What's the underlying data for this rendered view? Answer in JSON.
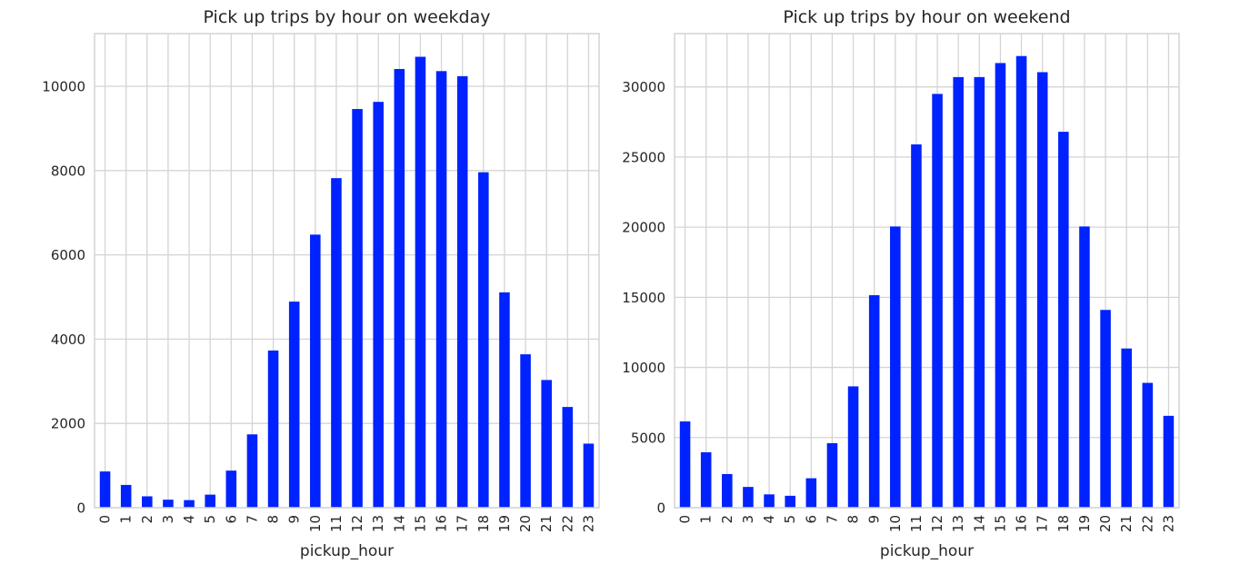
{
  "colors": {
    "bar": "#0022ff",
    "grid": "#d4d4d4",
    "frame": "#d4d4d4",
    "background": "#ffffff",
    "text": "#262626"
  },
  "chart_data": [
    {
      "type": "bar",
      "title": "Pick up trips by hour on weekday",
      "xlabel": "pickup_hour",
      "ylabel": "",
      "categories": [
        "0",
        "1",
        "2",
        "3",
        "4",
        "5",
        "6",
        "7",
        "8",
        "9",
        "10",
        "11",
        "12",
        "13",
        "14",
        "15",
        "16",
        "17",
        "18",
        "19",
        "20",
        "21",
        "22",
        "23"
      ],
      "values": [
        860,
        540,
        270,
        190,
        180,
        310,
        880,
        1740,
        3730,
        4890,
        6480,
        7820,
        9460,
        9630,
        10410,
        10700,
        10360,
        10240,
        7960,
        5110,
        3640,
        3030,
        2390,
        1520
      ],
      "ylim": [
        0,
        11250
      ],
      "yticks": [
        0,
        2000,
        4000,
        6000,
        8000,
        10000
      ],
      "ytick_labels": [
        "0",
        "2000",
        "4000",
        "6000",
        "8000",
        "10000"
      ],
      "grid": true,
      "legend": "none"
    },
    {
      "type": "bar",
      "title": "Pick up trips by hour on weekend",
      "xlabel": "pickup_hour",
      "ylabel": "",
      "categories": [
        "0",
        "1",
        "2",
        "3",
        "4",
        "5",
        "6",
        "7",
        "8",
        "9",
        "10",
        "11",
        "12",
        "13",
        "14",
        "15",
        "16",
        "17",
        "18",
        "19",
        "20",
        "21",
        "22",
        "23"
      ],
      "values": [
        6150,
        3950,
        2400,
        1480,
        950,
        850,
        2100,
        4600,
        8650,
        15150,
        20050,
        25900,
        29500,
        30700,
        30700,
        31700,
        32200,
        31050,
        26800,
        20050,
        14100,
        11350,
        8900,
        6550
      ],
      "ylim": [
        0,
        33800
      ],
      "yticks": [
        0,
        5000,
        10000,
        15000,
        20000,
        25000,
        30000
      ],
      "ytick_labels": [
        "0",
        "5000",
        "10000",
        "15000",
        "20000",
        "25000",
        "30000"
      ],
      "grid": true,
      "legend": "none"
    }
  ]
}
